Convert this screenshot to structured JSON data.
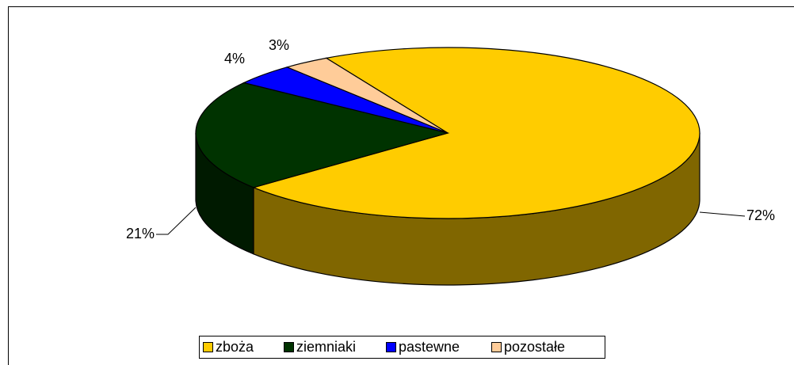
{
  "chart_data": {
    "type": "pie",
    "categories": [
      "zboża",
      "ziemniaki",
      "pastewne",
      "pozostałe"
    ],
    "values": [
      72,
      21,
      4,
      3
    ],
    "value_labels": [
      "72%",
      "21%",
      "4%",
      "3%"
    ],
    "colors": [
      "#FFCC00",
      "#003300",
      "#0000FF",
      "#FFCC99"
    ],
    "legend": "bottom"
  }
}
